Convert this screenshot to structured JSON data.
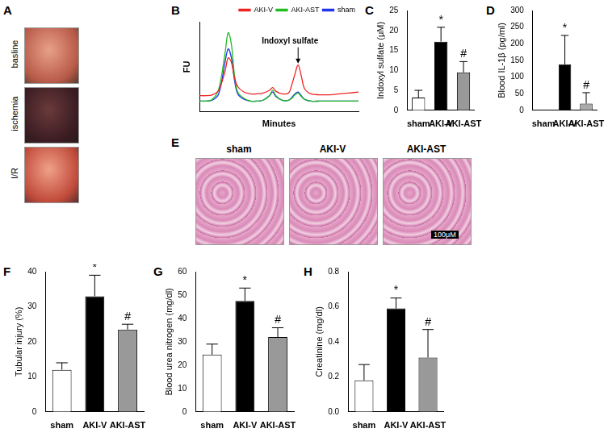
{
  "chart_data": [
    {
      "panel_label": "B",
      "type": "line",
      "xlabel": "Minutes",
      "ylabel": "FU",
      "x": [
        0,
        4,
        8,
        12,
        16,
        18,
        20,
        22,
        24,
        28,
        32,
        36,
        40,
        44,
        46,
        48,
        52,
        56,
        58,
        60,
        62,
        64,
        66,
        70,
        76,
        82,
        88,
        94,
        100
      ],
      "series": [
        {
          "name": "AKI-V",
          "color": "#ee2222",
          "values": [
            18,
            18,
            19,
            24,
            45,
            60,
            55,
            38,
            28,
            22,
            20,
            20,
            21,
            24,
            27,
            23,
            20,
            21,
            30,
            42,
            52,
            40,
            26,
            20,
            19,
            19,
            20,
            21,
            22
          ]
        },
        {
          "name": "AKI-AST",
          "color": "#22bb22",
          "values": [
            12,
            12,
            14,
            25,
            65,
            88,
            75,
            40,
            22,
            15,
            12,
            12,
            13,
            18,
            24,
            18,
            13,
            13,
            15,
            19,
            21,
            17,
            14,
            12,
            12,
            12,
            12,
            12,
            12
          ]
        },
        {
          "name": "sham",
          "color": "#2233ee",
          "values": [
            12,
            12,
            13,
            20,
            55,
            70,
            60,
            35,
            20,
            14,
            12,
            12,
            13,
            18,
            22,
            17,
            13,
            13,
            16,
            20,
            22,
            18,
            14,
            12,
            12,
            12,
            12,
            12,
            12
          ]
        }
      ],
      "xlim": [
        0,
        100
      ],
      "ylim": [
        0,
        100
      ],
      "tick_labels": false,
      "grid": false,
      "legend": "top-right",
      "annotations": [
        {
          "text": "Indoxyl sulfate",
          "x": 62
        }
      ]
    },
    {
      "panel_label": "C",
      "type": "bar",
      "ylabel": "Indoxyl sulfate (μM)",
      "categories": [
        "sham",
        "AKI-V",
        "AKI-AST"
      ],
      "values": [
        3.2,
        17.2,
        9.5
      ],
      "errors": [
        1.8,
        3.6,
        2.7
      ],
      "colors": [
        "#ffffff",
        "#000000",
        "#999999"
      ],
      "ylim": [
        0,
        25
      ],
      "yticks": [
        0,
        5,
        10,
        15,
        20,
        25
      ],
      "grid": false,
      "annotations": [
        {
          "category": "AKI-V",
          "text": "*"
        },
        {
          "category": "AKI-AST",
          "text": "#"
        }
      ]
    },
    {
      "panel_label": "D",
      "type": "bar",
      "ylabel": "Blood IL-1β (pg/ml)",
      "categories": [
        "sham",
        "AKI-V",
        "AKI-AST"
      ],
      "values": [
        0,
        138,
        20
      ],
      "errors": [
        0,
        87,
        33
      ],
      "colors": [
        "#ffffff",
        "#000000",
        "#aaaaaa"
      ],
      "ylim": [
        0,
        300
      ],
      "yticks": [
        0,
        50,
        100,
        150,
        200,
        250,
        300
      ],
      "grid": false,
      "annotations": [
        {
          "category": "AKI-V",
          "text": "*"
        },
        {
          "category": "AKI-AST",
          "text": "#"
        }
      ]
    },
    {
      "panel_label": "F",
      "type": "bar",
      "ylabel": "Tubular injury (%)",
      "categories": [
        "sham",
        "AKI-V",
        "AKI-AST"
      ],
      "values": [
        12,
        33,
        23.5
      ],
      "errors": [
        2,
        6,
        1.5
      ],
      "colors": [
        "#ffffff",
        "#000000",
        "#999999"
      ],
      "ylim": [
        0,
        40
      ],
      "yticks": [
        0,
        10,
        20,
        30,
        40
      ],
      "grid": false,
      "annotations": [
        {
          "category": "AKI-V",
          "text": "*"
        },
        {
          "category": "AKI-AST",
          "text": "#"
        }
      ]
    },
    {
      "panel_label": "G",
      "type": "bar",
      "ylabel": "Blood urea nitrogen (mg/dl)",
      "categories": [
        "sham",
        "AKI-V",
        "AKI-AST"
      ],
      "values": [
        24.5,
        47.5,
        32
      ],
      "errors": [
        4.5,
        5.5,
        4
      ],
      "colors": [
        "#ffffff",
        "#000000",
        "#999999"
      ],
      "ylim": [
        0,
        60
      ],
      "yticks": [
        0,
        10,
        20,
        30,
        40,
        50,
        60
      ],
      "grid": false,
      "annotations": [
        {
          "category": "AKI-V",
          "text": "*"
        },
        {
          "category": "AKI-AST",
          "text": "#"
        }
      ]
    },
    {
      "panel_label": "H",
      "type": "bar",
      "ylabel": "Creatinine (mg/dl)",
      "categories": [
        "sham",
        "AKI-V",
        "AKI-AST"
      ],
      "values": [
        0.18,
        0.59,
        0.31
      ],
      "errors": [
        0.09,
        0.06,
        0.16
      ],
      "colors": [
        "#ffffff",
        "#000000",
        "#999999"
      ],
      "ylim": [
        0,
        0.8
      ],
      "yticks": [
        {
          "value": 0,
          "label": "0.0"
        },
        0.2,
        0.4,
        0.6,
        0.8
      ],
      "grid": false,
      "annotations": [
        {
          "category": "AKI-V",
          "text": "*"
        },
        {
          "category": "AKI-AST",
          "text": "#"
        }
      ]
    }
  ],
  "image_panels": [
    {
      "panel_label": "A",
      "labels": [
        "basline",
        "ischemia",
        "I/R"
      ]
    },
    {
      "panel_label": "E",
      "labels": [
        "sham",
        "AKI-V",
        "AKI-AST"
      ],
      "scale_bar": "100μM"
    }
  ]
}
